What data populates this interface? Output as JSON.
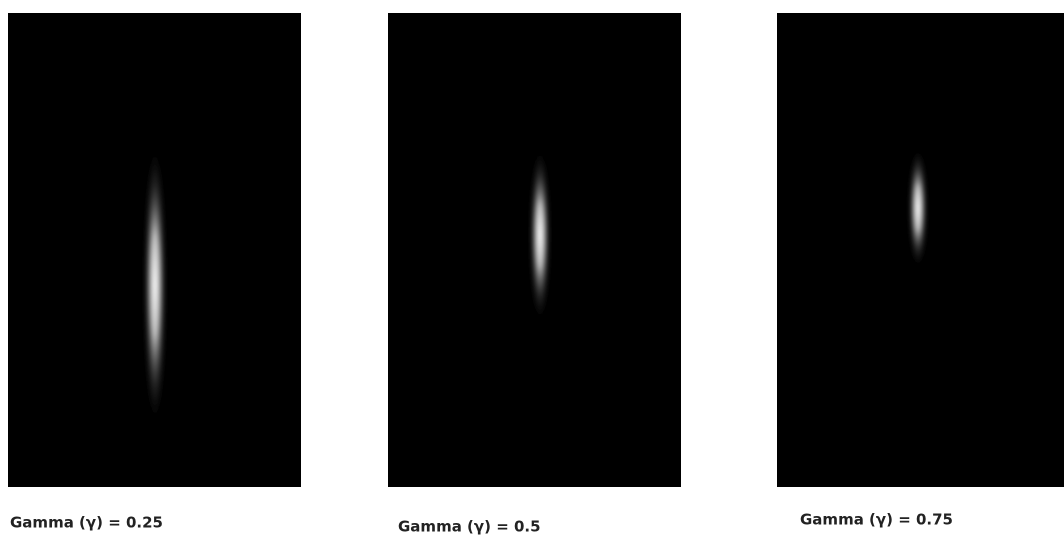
{
  "panels": [
    {
      "caption": "Gamma (γ) = 0.25"
    },
    {
      "caption": "Gamma (γ) = 0.5"
    },
    {
      "caption": "Gamma (γ) = 0.75"
    }
  ]
}
